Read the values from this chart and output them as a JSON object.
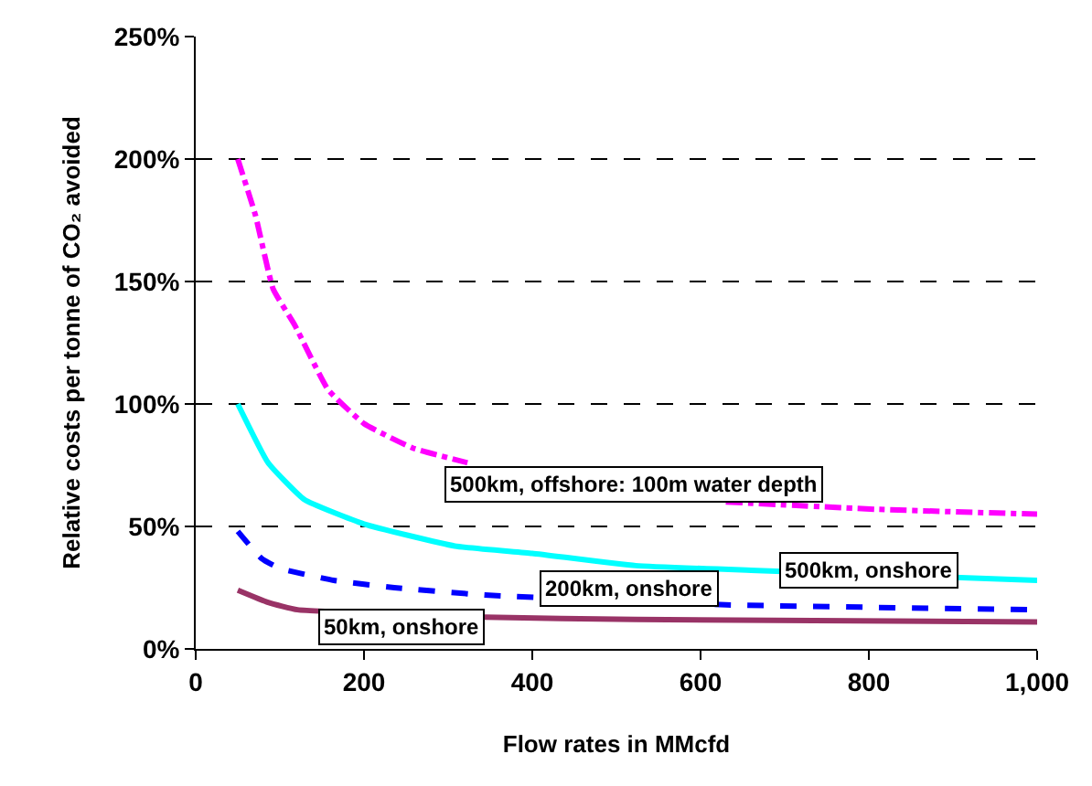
{
  "chart_data": {
    "type": "line",
    "xlabel": "Flow rates in MMcfd",
    "ylabel": "Relative costs per tonne of CO₂ avoided",
    "xlim": [
      0,
      1000
    ],
    "xticks": [
      0,
      200,
      400,
      600,
      800,
      {
        "value": 1000,
        "label": "1,000"
      }
    ],
    "ylim": [
      0,
      250
    ],
    "yticks": [
      {
        "value": 0,
        "label": "0%"
      },
      {
        "value": 50,
        "label": "50%"
      },
      {
        "value": 100,
        "label": "100%"
      },
      {
        "value": 150,
        "label": "150%"
      },
      {
        "value": 200,
        "label": "200%"
      },
      {
        "value": 250,
        "label": "250%"
      }
    ],
    "grid": "y",
    "legend": false,
    "marker": "none",
    "series": [
      {
        "name": "500km, offshore: 100m water depth",
        "color": "#ff00ff",
        "line_style": "dashdot",
        "x": [
          50,
          71,
          92,
          118,
          157,
          200,
          258,
          323,
          400,
          500,
          630,
          809,
          1000
        ],
        "values": [
          200,
          177,
          147,
          132,
          106,
          92,
          82,
          76,
          null,
          null,
          60,
          57,
          55
        ]
      },
      {
        "name": "500km, onshore",
        "color": "#00ffff",
        "line_style": "solid",
        "x": [
          50,
          86,
          129,
          200,
          308,
          400,
          523,
          667,
          1000
        ],
        "values": [
          100,
          76,
          61,
          51,
          42,
          39,
          34,
          32,
          28
        ]
      },
      {
        "name": "200km, onshore",
        "color": "#0000ff",
        "line_style": "dashed",
        "x": [
          50,
          78,
          99,
          164,
          236,
          344,
          630,
          1000
        ],
        "values": [
          48,
          37,
          33,
          28,
          25,
          22,
          18,
          16
        ]
      },
      {
        "name": "50km, onshore",
        "color": "#993366",
        "line_style": "solid",
        "x": [
          50,
          86,
          121,
          344,
          523,
          1000
        ],
        "values": [
          24,
          19,
          16,
          13,
          12,
          11
        ]
      }
    ]
  }
}
